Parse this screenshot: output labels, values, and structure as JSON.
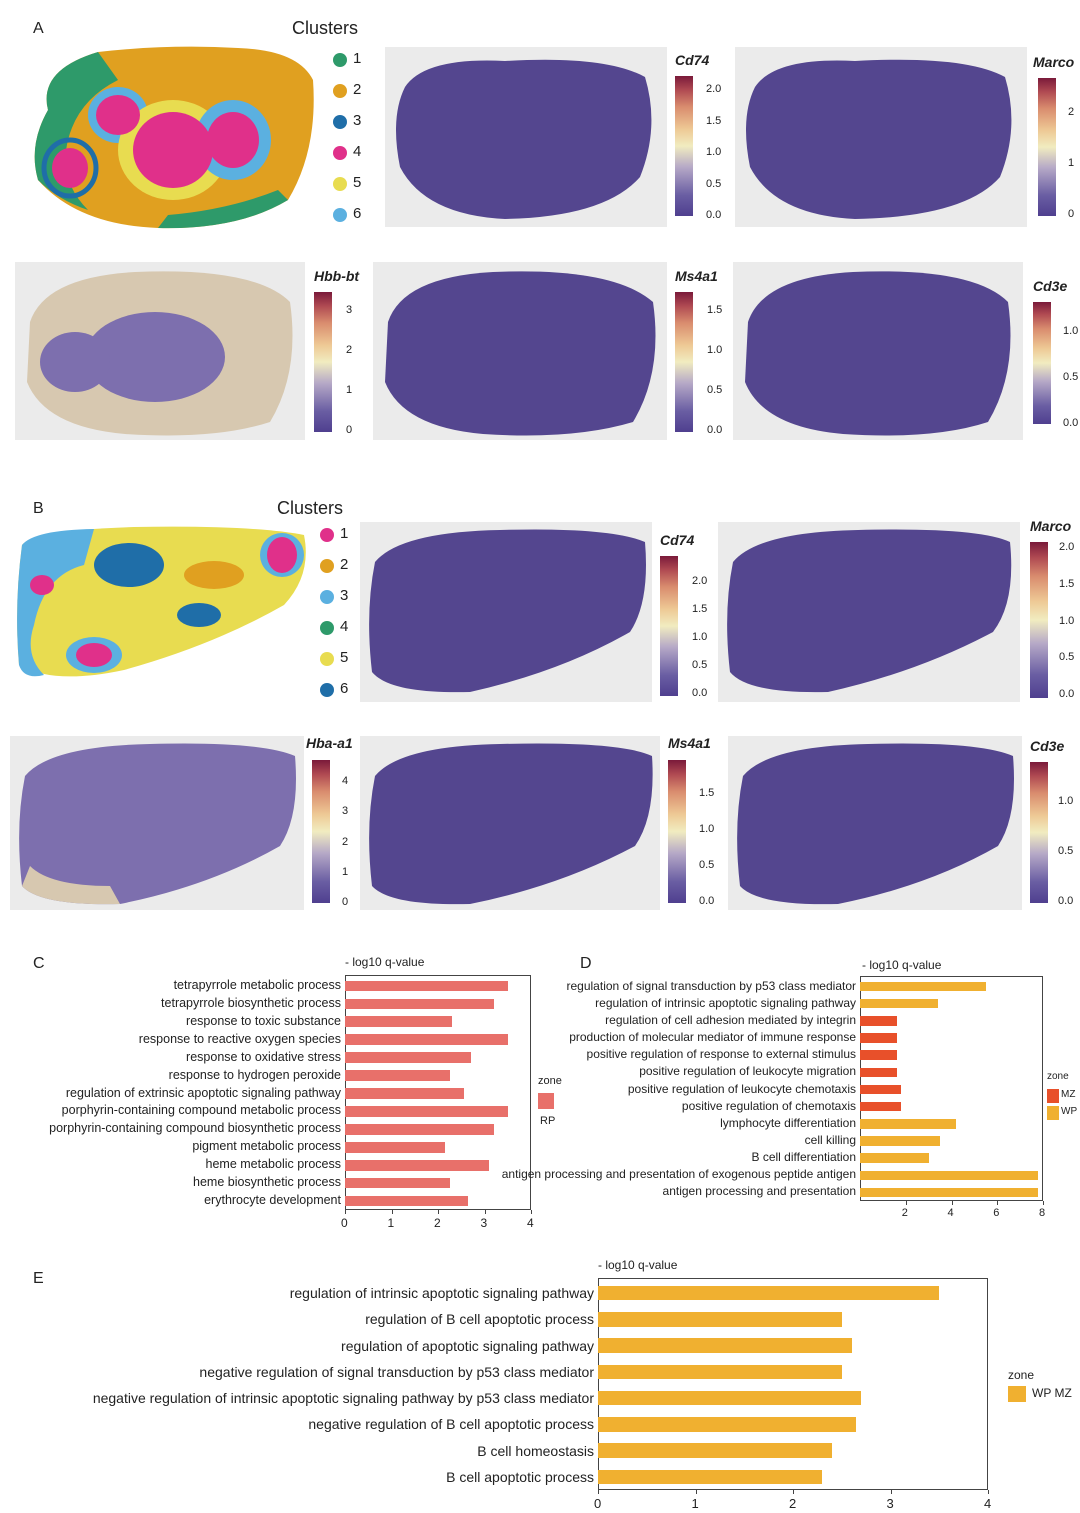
{
  "panel_a": {
    "letter": "A",
    "clusters_title": "Clusters",
    "legend": [
      {
        "label": "1",
        "color": "#2e9a6a"
      },
      {
        "label": "2",
        "color": "#e0a020"
      },
      {
        "label": "3",
        "color": "#1f6ea8"
      },
      {
        "label": "4",
        "color": "#e0308a"
      },
      {
        "label": "5",
        "color": "#e8dc50"
      },
      {
        "label": "6",
        "color": "#5bb0e0"
      }
    ],
    "maps": [
      {
        "gene": "Cd74",
        "ticks": [
          "2.0",
          "1.5",
          "1.0",
          "0.5",
          "0.0"
        ]
      },
      {
        "gene": "Marco",
        "ticks": [
          "2",
          "1",
          "0"
        ]
      },
      {
        "gene": "Hbb-bt",
        "ticks": [
          "3",
          "2",
          "1",
          "0"
        ]
      },
      {
        "gene": "Ms4a1",
        "ticks": [
          "1.5",
          "1.0",
          "0.5",
          "0.0"
        ]
      },
      {
        "gene": "Cd3e",
        "ticks": [
          "1.0",
          "0.5",
          "0.0"
        ]
      }
    ]
  },
  "panel_b": {
    "letter": "B",
    "clusters_title": "Clusters",
    "legend": [
      {
        "label": "1",
        "color": "#e0308a"
      },
      {
        "label": "2",
        "color": "#e0a020"
      },
      {
        "label": "3",
        "color": "#5bb0e0"
      },
      {
        "label": "4",
        "color": "#2e9a6a"
      },
      {
        "label": "5",
        "color": "#e8dc50"
      },
      {
        "label": "6",
        "color": "#1f6ea8"
      }
    ],
    "maps": [
      {
        "gene": "Cd74",
        "ticks": [
          "2.0",
          "1.5",
          "1.0",
          "0.5",
          "0.0"
        ]
      },
      {
        "gene": "Marco",
        "ticks": [
          "2.0",
          "1.5",
          "1.0",
          "0.5",
          "0.0"
        ]
      },
      {
        "gene": "Hba-a1",
        "ticks": [
          "4",
          "3",
          "2",
          "1",
          "0"
        ]
      },
      {
        "gene": "Ms4a1",
        "ticks": [
          "1.5",
          "1.0",
          "0.5",
          "0.0"
        ]
      },
      {
        "gene": "Cd3e",
        "ticks": [
          "1.0",
          "0.5",
          "0.0"
        ]
      }
    ]
  },
  "chart_data": [
    {
      "panel": "C",
      "type": "bar",
      "orientation": "horizontal",
      "title": "- log10 q-value",
      "legend_title": "zone",
      "legend": [
        {
          "name": "RP",
          "color": "#e8706a"
        }
      ],
      "xlim": [
        0,
        4
      ],
      "xticks": [
        "0",
        "1",
        "2",
        "3",
        "4"
      ],
      "categories": [
        "tetrapyrrole metabolic process",
        "tetrapyrrole biosynthetic process",
        "response to toxic substance",
        "response to reactive oxygen species",
        "response to oxidative stress",
        "response to hydrogen peroxide",
        "regulation of extrinsic apoptotic signaling pathway",
        "porphyrin-containing compound metabolic process",
        "porphyrin-containing compound biosynthetic process",
        "pigment metabolic process",
        "heme metabolic process",
        "heme biosynthetic process",
        "erythrocyte development"
      ],
      "values": [
        3.5,
        3.2,
        2.3,
        3.5,
        2.7,
        2.25,
        2.55,
        3.5,
        3.2,
        2.15,
        3.1,
        2.25,
        2.65
      ],
      "zones": [
        "RP",
        "RP",
        "RP",
        "RP",
        "RP",
        "RP",
        "RP",
        "RP",
        "RP",
        "RP",
        "RP",
        "RP",
        "RP"
      ]
    },
    {
      "panel": "D",
      "type": "bar",
      "orientation": "horizontal",
      "title": "- log10 q-value",
      "legend_title": "zone",
      "legend": [
        {
          "name": "MZ",
          "color": "#e8502a"
        },
        {
          "name": "WP",
          "color": "#f0b030"
        }
      ],
      "xlim": [
        0,
        8
      ],
      "xticks": [
        "2",
        "4",
        "6",
        "8"
      ],
      "xtick_values": [
        2,
        4,
        6,
        8
      ],
      "categories": [
        "regulation of signal transduction by p53 class mediator",
        "regulation of intrinsic apoptotic signaling pathway",
        "regulation of cell adhesion mediated by integrin",
        "production of molecular mediator of immune response",
        "positive regulation of response to external stimulus",
        "positive regulation of leukocyte migration",
        "positive regulation of leukocyte chemotaxis",
        "positive regulation of chemotaxis",
        "lymphocyte differentiation",
        "cell killing",
        "B cell differentiation",
        "antigen processing and presentation of exogenous peptide antigen",
        "antigen processing and presentation"
      ],
      "values": [
        5.5,
        3.4,
        1.6,
        1.6,
        1.6,
        1.6,
        1.8,
        1.8,
        4.2,
        3.5,
        3.0,
        7.8,
        7.8
      ],
      "zones": [
        "WP",
        "WP",
        "MZ",
        "MZ",
        "MZ",
        "MZ",
        "MZ",
        "MZ",
        "WP",
        "WP",
        "WP",
        "WP",
        "WP"
      ]
    },
    {
      "panel": "E",
      "type": "bar",
      "orientation": "horizontal",
      "title": "- log10 q-value",
      "legend_title": "zone",
      "legend": [
        {
          "name": "WP MZ",
          "color": "#f0b030"
        }
      ],
      "xlim": [
        0,
        4
      ],
      "xticks": [
        "0",
        "1",
        "2",
        "3",
        "4"
      ],
      "categories": [
        "regulation of intrinsic apoptotic signaling pathway",
        "regulation of B cell apoptotic process",
        "regulation of apoptotic signaling pathway",
        "negative regulation of signal transduction by p53 class mediator",
        "negative regulation of intrinsic apoptotic signaling pathway by p53 class mediator",
        "negative regulation of B cell apoptotic process",
        "B cell homeostasis",
        "B cell apoptotic process"
      ],
      "values": [
        3.5,
        2.5,
        2.6,
        2.5,
        2.7,
        2.65,
        2.4,
        2.3
      ],
      "zones": [
        "WP MZ",
        "WP MZ",
        "WP MZ",
        "WP MZ",
        "WP MZ",
        "WP MZ",
        "WP MZ",
        "WP MZ"
      ]
    }
  ]
}
